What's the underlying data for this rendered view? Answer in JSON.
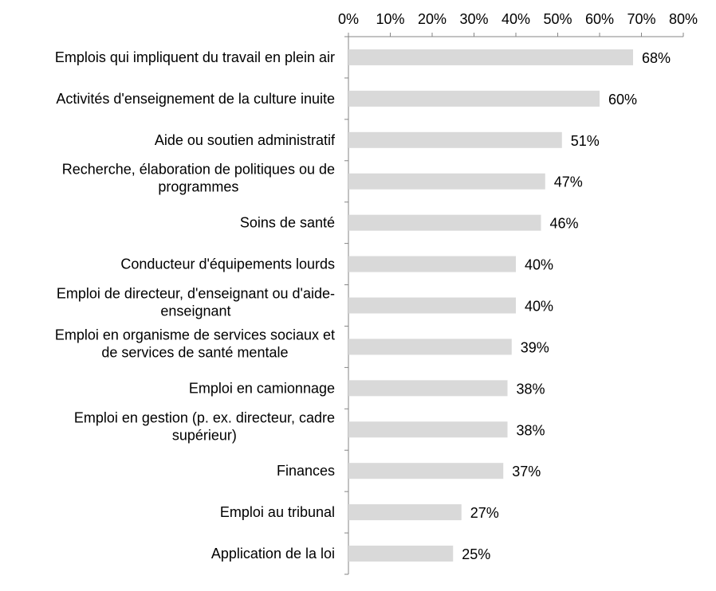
{
  "chart_data": {
    "type": "bar",
    "orientation": "horizontal",
    "title": "",
    "xlabel": "",
    "ylabel": "",
    "xlim": [
      0,
      80
    ],
    "x_ticks": [
      "0%",
      "10%",
      "20%",
      "30%",
      "40%",
      "50%",
      "60%",
      "70%",
      "80%"
    ],
    "x_axis_position": "top",
    "grid": false,
    "legend": "none",
    "bar_color": "#d9d9d9",
    "categories": [
      "Emplois qui impliquent du travail en plein air",
      "Activités d'enseignement de la culture inuite",
      "Aide ou soutien administratif",
      "Recherche, élaboration de politiques ou de programmes",
      "Soins de santé",
      "Conducteur d'équipements lourds",
      "Emploi de directeur, d'enseignant ou d'aide-enseignant",
      "Emploi en organisme de services sociaux et de services de santé mentale",
      "Emploi en camionnage",
      "Emploi en gestion (p. ex. directeur, cadre supérieur)",
      "Finances",
      "Emploi au tribunal",
      "Application de la loi"
    ],
    "category_lines": [
      [
        "Emplois qui impliquent du travail en plein air"
      ],
      [
        "Activités d'enseignement de la culture inuite"
      ],
      [
        "Aide ou soutien administratif"
      ],
      [
        "Recherche, élaboration de politiques ou de",
        "programmes"
      ],
      [
        "Soins de santé"
      ],
      [
        "Conducteur d'équipements lourds"
      ],
      [
        "Emploi de directeur, d'enseignant ou d'aide-",
        "enseignant"
      ],
      [
        "Emploi en organisme de services sociaux et",
        "de services de santé mentale"
      ],
      [
        "Emploi en camionnage"
      ],
      [
        "Emploi en gestion (p. ex. directeur, cadre",
        "supérieur)"
      ],
      [
        "Finances"
      ],
      [
        "Emploi au tribunal"
      ],
      [
        "Application de la loi"
      ]
    ],
    "values": [
      68,
      60,
      51,
      47,
      46,
      40,
      40,
      39,
      38,
      38,
      37,
      27,
      25
    ],
    "data_labels": [
      "68%",
      "60%",
      "51%",
      "47%",
      "46%",
      "40%",
      "40%",
      "39%",
      "38%",
      "38%",
      "37%",
      "27%",
      "25%"
    ]
  }
}
